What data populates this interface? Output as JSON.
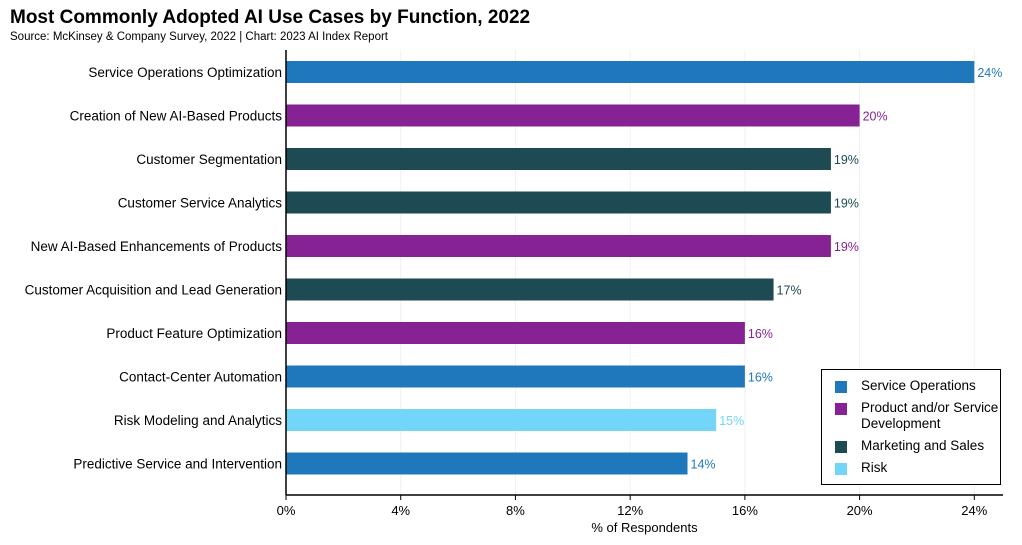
{
  "title": "Most Commonly Adopted AI Use Cases by Function, 2022",
  "subtitle": "Source: McKinsey & Company Survey, 2022 | Chart: 2023 AI Index Report",
  "colors": {
    "service_operations": "#1f78bb",
    "product_service_development": "#862293",
    "marketing_and_sales": "#1d4a53",
    "risk": "#73d6f9"
  },
  "legend": [
    {
      "label": "Service Operations",
      "color": "#1f78bb"
    },
    {
      "label": "Product and/or Service Development",
      "color": "#862293"
    },
    {
      "label": "Marketing and Sales",
      "color": "#1d4a53"
    },
    {
      "label": "Risk",
      "color": "#73d6f9"
    }
  ],
  "chart_data": {
    "type": "bar",
    "orientation": "horizontal",
    "title": "Most Commonly Adopted AI Use Cases by Function, 2022",
    "xlabel": "% of Respondents",
    "ylabel": "",
    "xlim": [
      0,
      25
    ],
    "xticks": [
      0,
      4,
      8,
      12,
      16,
      20,
      24
    ],
    "xtick_labels": [
      "0%",
      "4%",
      "8%",
      "12%",
      "16%",
      "20%",
      "24%"
    ],
    "grid": false,
    "legend_position": "bottom-right",
    "categories": [
      "Service Operations Optimization",
      "Creation of New AI-Based Products",
      "Customer Segmentation",
      "Customer Service Analytics",
      "New AI-Based Enhancements of Products",
      "Customer Acquisition and Lead Generation",
      "Product Feature Optimization",
      "Contact-Center Automation",
      "Risk Modeling and Analytics",
      "Predictive Service and Intervention"
    ],
    "values": [
      24,
      20,
      19,
      19,
      19,
      17,
      16,
      16,
      15,
      14
    ],
    "value_labels": [
      "24%",
      "20%",
      "19%",
      "19%",
      "19%",
      "17%",
      "16%",
      "16%",
      "15%",
      "14%"
    ],
    "functions": [
      "Service Operations",
      "Product and/or Service Development",
      "Marketing and Sales",
      "Marketing and Sales",
      "Product and/or Service Development",
      "Marketing and Sales",
      "Product and/or Service Development",
      "Service Operations",
      "Risk",
      "Service Operations"
    ]
  }
}
